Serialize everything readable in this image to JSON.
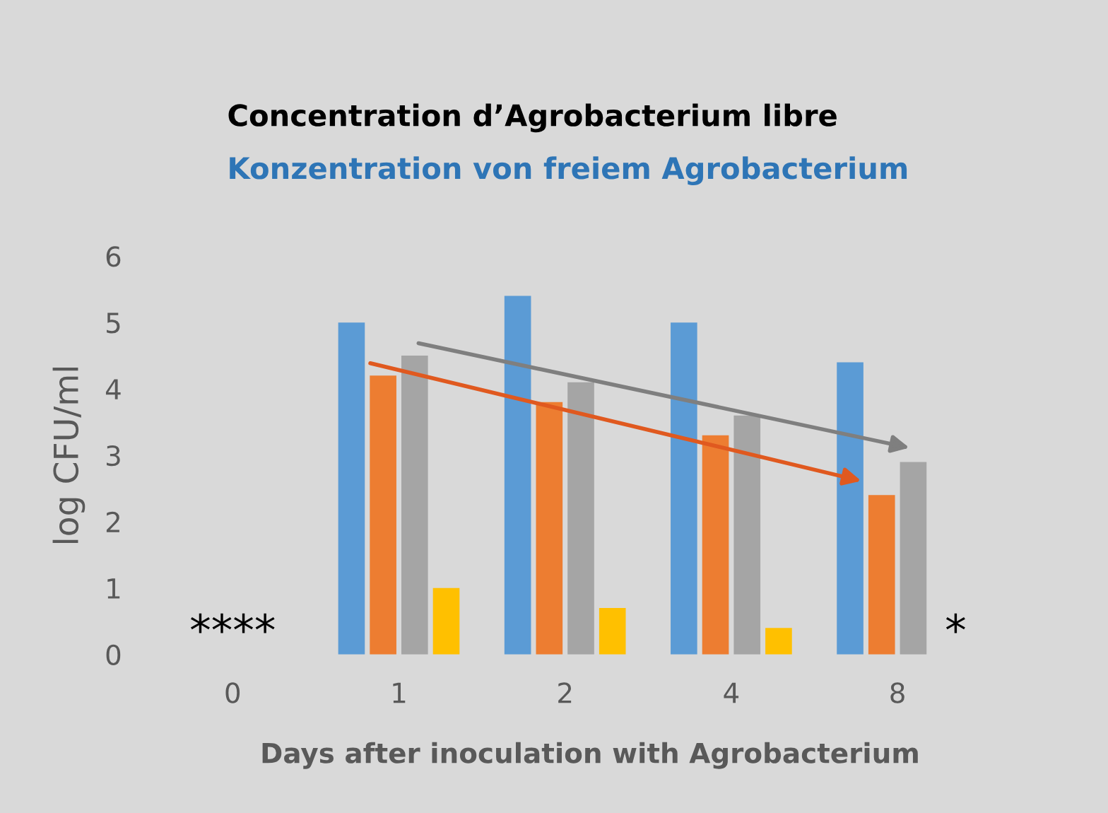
{
  "chart_data": {
    "type": "bar",
    "title": "Concentration d’Agrobacterium libre",
    "subtitle": "Konzentration von freiem Agrobacterium",
    "xlabel": "Days after inoculation with Agrobacterium",
    "ylabel": "log CFU/ml",
    "categories": [
      "0",
      "1",
      "2",
      "4",
      "8"
    ],
    "series": [
      {
        "color": "#5b9bd5",
        "values": [
          null,
          5.0,
          5.4,
          5.0,
          4.4
        ]
      },
      {
        "color": "#ed7d31",
        "values": [
          null,
          4.2,
          3.8,
          3.3,
          2.4
        ]
      },
      {
        "color": "#a5a5a5",
        "values": [
          null,
          4.5,
          4.1,
          3.6,
          2.9
        ]
      },
      {
        "color": "#ffc000",
        "values": [
          null,
          1.0,
          0.7,
          0.4,
          null
        ]
      }
    ],
    "annotations": [
      "****",
      "*"
    ],
    "ylim": [
      0,
      6
    ],
    "yticks": [
      0,
      1,
      2,
      3,
      4,
      5,
      6
    ],
    "grid": false,
    "legend": false
  }
}
